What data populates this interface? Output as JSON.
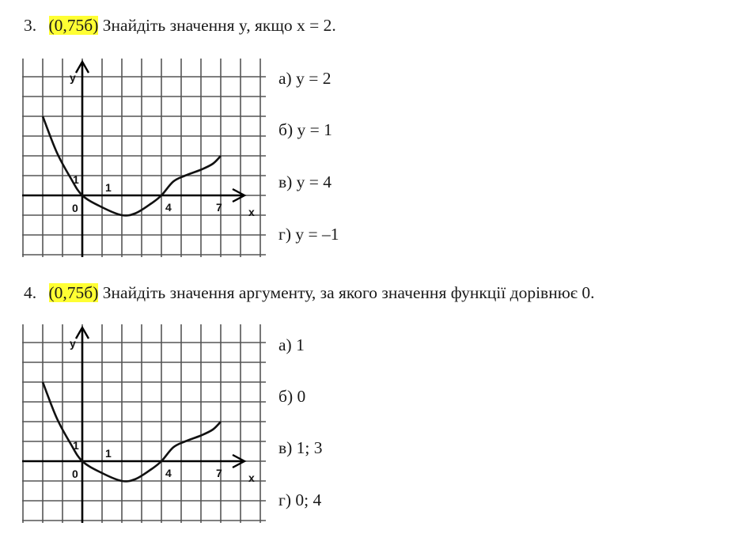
{
  "questions": [
    {
      "number": "3.",
      "points": "(0,75б)",
      "text": "Знайдіть значення y, якщо x = 2.",
      "options": [
        "а) y = 2",
        "б) y = 1",
        "в) y = 4",
        "г) y = –1"
      ]
    },
    {
      "number": "4.",
      "points": "(0,75б)",
      "text": "Знайдіть значення аргументу, за якого значення функції дорівнює 0.",
      "options": [
        "а) 1",
        "б) 0",
        "в) 1; 3",
        "г) 0; 4"
      ]
    }
  ],
  "graph": {
    "axis_labels": {
      "x": "x",
      "y": "y"
    },
    "tick_labels": {
      "origin": "0",
      "x_one": "1",
      "y_one": "1",
      "x_four": "4",
      "x_seven": "7"
    },
    "curve": [
      [
        -2,
        4
      ],
      [
        -1.3,
        2.2
      ],
      [
        -0.6,
        0.9
      ],
      [
        0,
        0
      ],
      [
        1,
        -0.6
      ],
      [
        2,
        -1
      ],
      [
        2.7,
        -0.9
      ],
      [
        3.5,
        -0.4
      ],
      [
        4,
        0
      ],
      [
        4.6,
        0.7
      ],
      [
        5.2,
        1
      ],
      [
        6,
        1.3
      ],
      [
        6.6,
        1.6
      ],
      [
        7,
        2
      ]
    ],
    "highlight_color": "#ffff33"
  }
}
